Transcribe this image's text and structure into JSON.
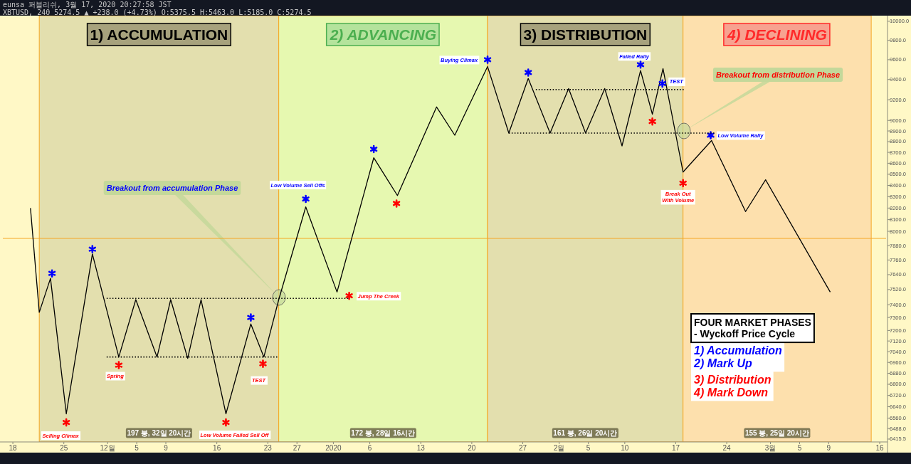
{
  "chart_data": {
    "type": "line",
    "title": "FOUR MARKET PHASES\n- Wyckoff Price Cycle",
    "log": "y",
    "grid": false,
    "xlim": [
      "2019-11-16T15:00",
      "2020-03-16T21:00"
    ],
    "ylim": [
      6396,
      10060
    ],
    "xticks": [
      {
        "value": "2019-11-18",
        "label": "18"
      },
      {
        "value": "2019-11-25",
        "label": "25"
      },
      {
        "value": "2019-12-01",
        "label": "12월"
      },
      {
        "value": "2019-12-05",
        "label": "5"
      },
      {
        "value": "2019-12-09",
        "label": "9"
      },
      {
        "value": "2019-12-16",
        "label": "16"
      },
      {
        "value": "2019-12-23",
        "label": "23"
      },
      {
        "value": "2019-12-27",
        "label": "27"
      },
      {
        "value": "2020-01-01",
        "label": "2020"
      },
      {
        "value": "2020-01-06",
        "label": "6"
      },
      {
        "value": "2020-01-13",
        "label": "13"
      },
      {
        "value": "2020-01-20",
        "label": "20"
      },
      {
        "value": "2020-01-27",
        "label": "27"
      },
      {
        "value": "2020-02-01",
        "label": "2월"
      },
      {
        "value": "2020-02-05",
        "label": "5"
      },
      {
        "value": "2020-02-10",
        "label": "10"
      },
      {
        "value": "2020-02-17",
        "label": "17"
      },
      {
        "value": "2020-02-24",
        "label": "24"
      },
      {
        "value": "2020-03-01",
        "label": "3월"
      },
      {
        "value": "2020-03-05",
        "label": "5"
      },
      {
        "value": "2020-03-09",
        "label": "9"
      },
      {
        "value": "2020-03-16",
        "label": "16"
      }
    ],
    "yticks": [
      {
        "value": 10000,
        "label": "10000.0"
      },
      {
        "value": 9800,
        "label": "9800.0"
      },
      {
        "value": 9600,
        "label": "9600.0"
      },
      {
        "value": 9400,
        "label": "9400.0"
      },
      {
        "value": 9200,
        "label": "9200.0"
      },
      {
        "value": 9000,
        "label": "9000.0"
      },
      {
        "value": 8900,
        "label": "8900.0"
      },
      {
        "value": 8800,
        "label": "8800.0"
      },
      {
        "value": 8700,
        "label": "8700.0"
      },
      {
        "value": 8600,
        "label": "8600.0"
      },
      {
        "value": 8500,
        "label": "8500.0"
      },
      {
        "value": 8400,
        "label": "8400.0"
      },
      {
        "value": 8300,
        "label": "8300.0"
      },
      {
        "value": 8200,
        "label": "8200.0"
      },
      {
        "value": 8100,
        "label": "8100.0"
      },
      {
        "value": 8000,
        "label": "8000.0"
      },
      {
        "value": 7880,
        "label": "7880.0"
      },
      {
        "value": 7760,
        "label": "7760.0"
      },
      {
        "value": 7640,
        "label": "7640.0"
      },
      {
        "value": 7520,
        "label": "7520.0"
      },
      {
        "value": 7400,
        "label": "7400.0"
      },
      {
        "value": 7300,
        "label": "7300.0"
      },
      {
        "value": 7200,
        "label": "7200.0"
      },
      {
        "value": 7120,
        "label": "7120.0"
      },
      {
        "value": 7040,
        "label": "7040.0"
      },
      {
        "value": 6960,
        "label": "6960.0"
      },
      {
        "value": 6880,
        "label": "6880.0"
      },
      {
        "value": 6800,
        "label": "6800.0"
      },
      {
        "value": 6720,
        "label": "6720.0"
      },
      {
        "value": 6640,
        "label": "6640.0"
      },
      {
        "value": 6560,
        "label": "6560.0"
      },
      {
        "value": 6488,
        "label": "6488.0"
      },
      6415.5
    ],
    "bands": [
      {
        "axis": "x",
        "from": "2019-11-21T15:00",
        "to": "2019-12-24T12:00",
        "label": "1) ACCUMULATION",
        "color": "#e3dfae"
      },
      {
        "axis": "x",
        "from": "2019-12-24T12:00",
        "to": "2020-01-22T04:00",
        "label": "2) ADVANCING",
        "color": "#e6f8b0"
      },
      {
        "axis": "x",
        "from": "2020-01-22T04:00",
        "to": "2020-02-18T00:00",
        "label": "3) DISTRIBUTION",
        "color": "#e3dfae"
      },
      {
        "axis": "x",
        "from": "2020-02-18T00:00",
        "to": "2020-03-14T20:00",
        "label": "4) DECLINING",
        "color": "#fde0ad"
      }
    ],
    "ref_lines": [
      {
        "axis": "y",
        "value": 7940,
        "color": "#f5a623"
      }
    ],
    "series": [
      {
        "color": "#000000",
        "line_style": "solid",
        "x": [
          "2019-11-20T10:00",
          "2019-11-21T15:00",
          "2019-11-23T04:00",
          "2019-11-25T08:00",
          "2019-11-28T22:00",
          "2019-12-02T13:00",
          "2019-12-04T21:00",
          "2019-12-07T19:00",
          "2019-12-09T16:00",
          "2019-12-12T00:00",
          "2019-12-13T20:00",
          "2019-12-17T06:00",
          "2019-12-20T16:00",
          "2019-12-22T11:00",
          "2019-12-24T12:00",
          "2019-12-28T05:00",
          "2020-01-01T12:00",
          "2020-01-06T13:00",
          "2020-01-09T19:00",
          "2020-01-15T04:00",
          "2020-01-17T16:00",
          "2020-01-22T04:00",
          "2020-01-25T02:00",
          "2020-01-27T18:00",
          "2020-01-30T18:00",
          "2020-02-02T07:00",
          "2020-02-04T15:00",
          "2020-02-07T06:00",
          "2020-02-09T15:00",
          "2020-02-12T04:00",
          "2020-02-13T19:00",
          "2020-02-15T06:00",
          "2020-02-18T00:00",
          "2020-02-21T22:00",
          "2020-02-26T14:00",
          "2020-02-29T08:00",
          "2020-03-09T05:00"
        ],
        "values": [
          8200,
          7340,
          7610,
          6590,
          7810,
          7000,
          7440,
          7000,
          7440,
          6990,
          7440,
          6590,
          7250,
          7000,
          7440,
          8210,
          7500,
          8650,
          8310,
          9130,
          8860,
          9530,
          8880,
          9410,
          8880,
          9310,
          8880,
          9310,
          8760,
          9490,
          9060,
          9510,
          8520,
          8810,
          8170,
          8450,
          7500
        ]
      },
      {
        "type": "scatter",
        "color": "#0000ff",
        "marker": "cross",
        "x": [
          "2019-11-23T09:00",
          "2019-11-28T22:00",
          "2019-12-20T16:00",
          "2019-12-28T05:00",
          "2020-01-06T13:00",
          "2020-01-22T04:00",
          "2020-01-27T18:00",
          "2020-02-12T04:00",
          "2020-02-15T04:00",
          "2020-02-21T19:00"
        ],
        "values": [
          7650,
          7850,
          7300,
          8280,
          8730,
          9600,
          9470,
          9550,
          9360,
          8860
        ]
      },
      {
        "type": "scatter",
        "color": "#ff0000",
        "marker": "cross",
        "x": [
          "2019-11-25T08:00",
          "2019-12-02T13:00",
          "2019-12-17T06:00",
          "2019-12-22T08:00",
          "2020-01-03T04:00",
          "2020-01-09T16:00",
          "2020-02-13T19:00",
          "2020-02-18T00:00"
        ],
        "values": [
          6530,
          6940,
          6530,
          6950,
          7470,
          8240,
          8990,
          8420
        ]
      },
      {
        "type": "line",
        "color": "#000000",
        "line_style": "dotted",
        "x": [
          "2019-11-30T21:00",
          "2020-01-03T01:00"
        ],
        "values": [
          7450,
          7450
        ]
      },
      {
        "type": "line",
        "color": "#000000",
        "line_style": "dotted",
        "x": [
          "2019-11-30T21:00",
          "2019-12-24T07:00"
        ],
        "values": [
          7000,
          7000
        ]
      },
      {
        "type": "line",
        "color": "#000000",
        "line_style": "dotted",
        "x": [
          "2020-01-25T02:00",
          "2020-02-22T07:00"
        ],
        "values": [
          8880,
          8880
        ]
      },
      {
        "type": "line",
        "color": "#000000",
        "line_style": "dotted",
        "x": [
          "2020-01-28T19:00",
          "2020-02-18T02:00"
        ],
        "values": [
          9300,
          9300
        ]
      }
    ],
    "annotations": [
      {
        "text": "Selling Climax",
        "x": "2019-11-25T08:00",
        "y": 6530
      },
      {
        "text": "Spring",
        "x": "2019-12-02T13:00",
        "y": 6940
      },
      {
        "text": "Low Volume Failed Sell Off",
        "x": "2019-12-17T06:00",
        "y": 6530
      },
      {
        "text": "TEST",
        "x": "2019-12-22T08:00",
        "y": 6950
      },
      {
        "text": "Jump The Creek",
        "x": "2020-01-03T04:00",
        "y": 7470
      },
      {
        "text": "Low Volume Sell Offs",
        "x": "2019-12-28T05:00",
        "y": 8280
      },
      {
        "text": "Buying Climax",
        "x": "2020-01-22T04:00",
        "y": 9600
      },
      {
        "text": "Failed Rally",
        "x": "2020-02-12T04:00",
        "y": 9550
      },
      {
        "text": "TEST",
        "x": "2020-02-15T04:00",
        "y": 9360
      },
      {
        "text": "Low Volume Rally",
        "x": "2020-02-21T19:00",
        "y": 8860
      },
      {
        "text": "Break Out\nWith Volume",
        "x": "2020-02-18T00:00",
        "y": 8420
      },
      "Breakout from accumulation Phase",
      "Breakout from distribution Phase",
      "197 봉, 32일 20시간",
      "172 봉, 28일 16시간",
      "161 봉, 26일 20시간",
      "155 봉, 25일 20시간",
      "eunsa 퍼블리쉬, 3월 17, 2020 20:27:58 JST",
      "XBTUSD, 240 5274.5 ▲ +238.0 (+4.73%) O:5375.5 H:5463.0 L:5185.0 C:5274.5",
      "1) Accumulation\n2) Mark Up",
      "3) Distribution\n4) Mark Down"
    ]
  }
}
